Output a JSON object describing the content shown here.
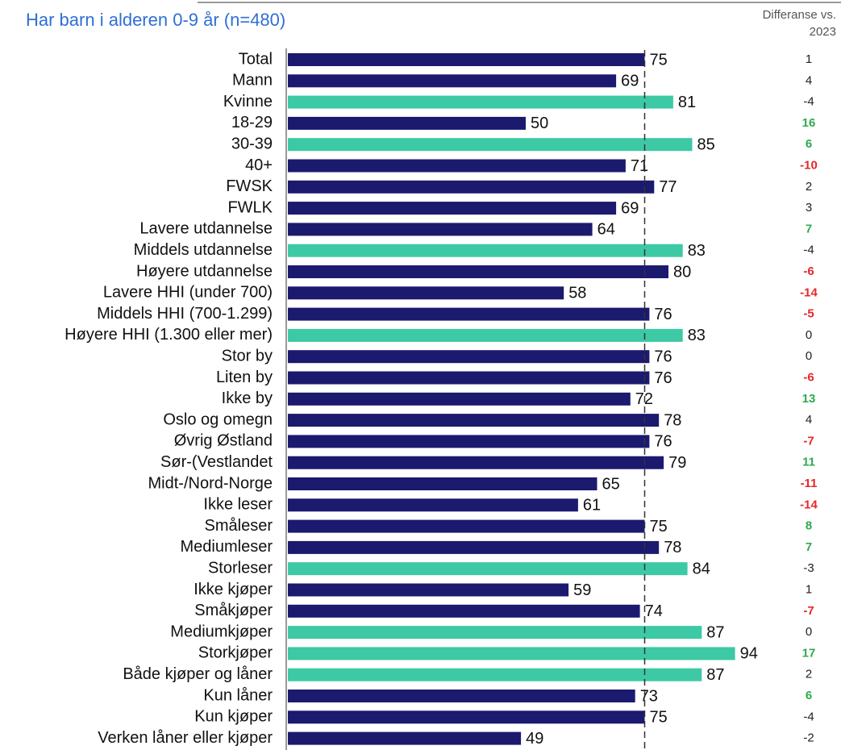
{
  "chart_data": {
    "type": "bar",
    "orientation": "horizontal",
    "title": "Har barn i alderen 0-9 år (n=480)",
    "diff_header": "Differanse vs. 2023",
    "categories": [
      "Total",
      "Mann",
      "Kvinne",
      "18-29",
      "30-39",
      "40+",
      "FWSK",
      "FWLK",
      "Lavere utdannelse",
      "Middels utdannelse",
      "Høyere utdannelse",
      "Lavere HHI (under 700)",
      "Middels HHI (700-1.299)",
      "Høyere HHI (1.300 eller mer)",
      "Stor by",
      "Liten by",
      "Ikke by",
      "Oslo og omegn",
      "Øvrig Østland",
      "Sør-(Vestlandet",
      "Midt-/Nord-Norge",
      "Ikke leser",
      "Småleser",
      "Mediumleser",
      "Storleser",
      "Ikke kjøper",
      "Småkjøper",
      "Mediumkjøper",
      "Storkjøper",
      "Både kjøper og låner",
      "Kun låner",
      "Kun kjøper",
      "Verken låner eller kjøper"
    ],
    "values": [
      75,
      69,
      81,
      50,
      85,
      71,
      77,
      69,
      64,
      83,
      80,
      58,
      76,
      83,
      76,
      76,
      72,
      78,
      76,
      79,
      65,
      61,
      75,
      78,
      84,
      59,
      74,
      87,
      94,
      87,
      73,
      75,
      49
    ],
    "bar_colors": [
      "#1b1a6f",
      "#1b1a6f",
      "#3cc9a4",
      "#1b1a6f",
      "#3cc9a4",
      "#1b1a6f",
      "#1b1a6f",
      "#1b1a6f",
      "#1b1a6f",
      "#3cc9a4",
      "#1b1a6f",
      "#1b1a6f",
      "#1b1a6f",
      "#3cc9a4",
      "#1b1a6f",
      "#1b1a6f",
      "#1b1a6f",
      "#1b1a6f",
      "#1b1a6f",
      "#1b1a6f",
      "#1b1a6f",
      "#1b1a6f",
      "#1b1a6f",
      "#1b1a6f",
      "#3cc9a4",
      "#1b1a6f",
      "#1b1a6f",
      "#3cc9a4",
      "#3cc9a4",
      "#3cc9a4",
      "#1b1a6f",
      "#1b1a6f",
      "#1b1a6f"
    ],
    "diffs": [
      1,
      4,
      -4,
      16,
      6,
      -10,
      2,
      3,
      7,
      -4,
      -6,
      -14,
      -5,
      0,
      0,
      -6,
      13,
      4,
      -7,
      11,
      -11,
      -14,
      8,
      7,
      -3,
      1,
      -7,
      0,
      17,
      2,
      6,
      -4,
      -2
    ],
    "diff_colors": [
      "#222222",
      "#222222",
      "#222222",
      "#2eaa4f",
      "#2eaa4f",
      "#e8262a",
      "#222222",
      "#222222",
      "#2eaa4f",
      "#222222",
      "#e8262a",
      "#e8262a",
      "#e8262a",
      "#222222",
      "#222222",
      "#e8262a",
      "#2eaa4f",
      "#222222",
      "#e8262a",
      "#2eaa4f",
      "#e8262a",
      "#e8262a",
      "#2eaa4f",
      "#2eaa4f",
      "#222222",
      "#222222",
      "#e8262a",
      "#222222",
      "#2eaa4f",
      "#222222",
      "#2eaa4f",
      "#222222",
      "#222222"
    ],
    "diff_default_color": "#222222",
    "reference_line": 75,
    "xlim": [
      0,
      100
    ]
  }
}
